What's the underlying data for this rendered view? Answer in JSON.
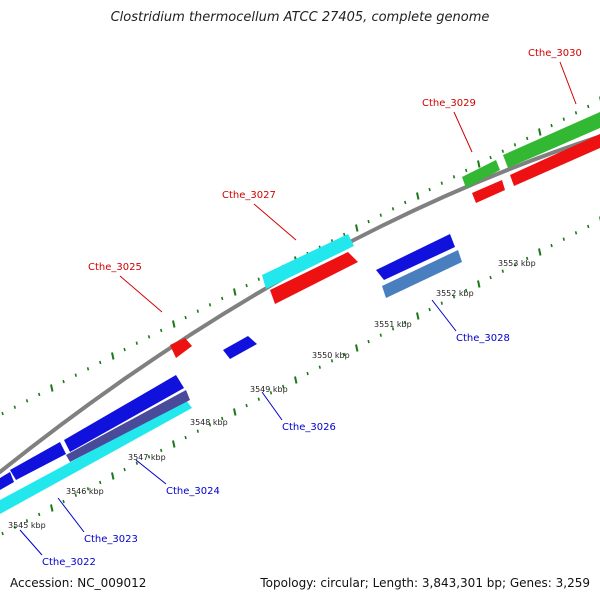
{
  "title": "Clostridium thermocellum ATCC 27405, complete genome",
  "footer": {
    "accession": "Accession: NC_009012",
    "topology": "Topology: circular; Length: 3,843,301 bp; Genes: 3,259"
  },
  "scale_labels": [
    "3545 kbp",
    "3546 kbp",
    "3547 kbp",
    "3548 kbp",
    "3549 kbp",
    "3550 kbp",
    "3551 kbp",
    "3552 kbp",
    "3553 kbp"
  ],
  "genes": [
    {
      "name": "Cthe_3022",
      "strand": "minus"
    },
    {
      "name": "Cthe_3023",
      "strand": "minus"
    },
    {
      "name": "Cthe_3024",
      "strand": "minus"
    },
    {
      "name": "Cthe_3025",
      "strand": "plus"
    },
    {
      "name": "Cthe_3026",
      "strand": "minus"
    },
    {
      "name": "Cthe_3027",
      "strand": "plus"
    },
    {
      "name": "Cthe_3028",
      "strand": "minus"
    },
    {
      "name": "Cthe_3029",
      "strand": "plus"
    },
    {
      "name": "Cthe_3030",
      "strand": "plus"
    }
  ],
  "colors": {
    "plus_label": "#d00000",
    "minus_label": "#0000cc",
    "backbone": "#808080",
    "ticks": "#1a7a1a",
    "cds_red": "#ee1111",
    "cds_blue": "#1111dd",
    "cds_cyan": "#22e8ee",
    "cds_green": "#33b833",
    "cds_steelblue": "#4a7fbf",
    "cds_slate": "#4a4a9a"
  }
}
